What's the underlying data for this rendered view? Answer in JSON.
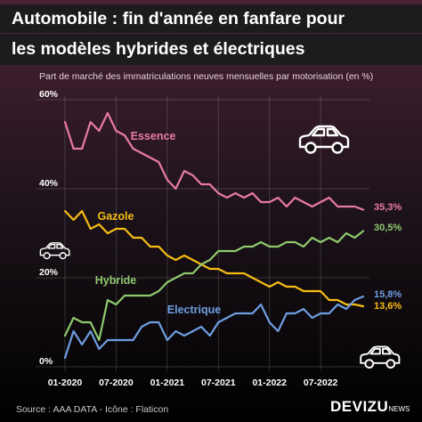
{
  "title_line1": "Automobile : fin d'année en fanfare pour",
  "title_line2": "les modèles hybrides et électriques",
  "subtitle": "Part de marché des immatriculations neuves mensuelles par motorisation (en %)",
  "source": "Source : AAA DATA - Icône : Flaticon",
  "brand": {
    "name": "DEVIZU",
    "suffix": "NEWS"
  },
  "icons": [
    "car-icon",
    "car-icon",
    "car-icon"
  ],
  "colors": {
    "essence": "#e87aa8",
    "gazole": "#f5bd14",
    "hybride": "#8fc96e",
    "electrique": "#6e9ee0",
    "axis_text": "#ffffff"
  },
  "chart_data": {
    "type": "line",
    "title": "Automobile : fin d'année en fanfare pour les modèles hybrides et électriques",
    "subtitle": "Part de marché des immatriculations neuves mensuelles par motorisation (en %)",
    "xlabel": "",
    "ylabel": "",
    "x": [
      "01-2020",
      "02-2020",
      "03-2020",
      "04-2020",
      "05-2020",
      "06-2020",
      "07-2020",
      "08-2020",
      "09-2020",
      "10-2020",
      "11-2020",
      "12-2020",
      "01-2021",
      "02-2021",
      "03-2021",
      "04-2021",
      "05-2021",
      "06-2021",
      "07-2021",
      "08-2021",
      "09-2021",
      "10-2021",
      "11-2021",
      "12-2021",
      "01-2022",
      "02-2022",
      "03-2022",
      "04-2022",
      "05-2022",
      "06-2022",
      "07-2022",
      "08-2022",
      "09-2022",
      "10-2022",
      "11-2022",
      "12-2022"
    ],
    "x_ticks": [
      "01-2020",
      "07-2020",
      "01-2021",
      "07-2021",
      "01-2022",
      "07-2022"
    ],
    "y_ticks": [
      "0%",
      "20%",
      "40%",
      "60%"
    ],
    "ylim": [
      0,
      60
    ],
    "grid": true,
    "legend": "inline labels",
    "series": [
      {
        "name": "Essence",
        "color": "#e87aa8",
        "end_label": "35,3%",
        "values": [
          55,
          49,
          49,
          55,
          53,
          57,
          53,
          52,
          49,
          48,
          47,
          46,
          42,
          40,
          44,
          43,
          41,
          41,
          39,
          38,
          39,
          38,
          39,
          37,
          37,
          38,
          36,
          38,
          37,
          36,
          37,
          38,
          36,
          36,
          36,
          35.3
        ]
      },
      {
        "name": "Gazole",
        "color": "#f5bd14",
        "end_label": "13,6%",
        "values": [
          35,
          33,
          35,
          31,
          32,
          30,
          31,
          31,
          29,
          29,
          27,
          27,
          25,
          24,
          25,
          24,
          23,
          22,
          22,
          21,
          21,
          21,
          20,
          19,
          18,
          19,
          18,
          18,
          17,
          17,
          17,
          15,
          15,
          14,
          14,
          13.6
        ]
      },
      {
        "name": "Hybride",
        "color": "#8fc96e",
        "end_label": "30,5%",
        "values": [
          7,
          11,
          10,
          10,
          6,
          15,
          14,
          16,
          16,
          16,
          16,
          17,
          19,
          20,
          21,
          21,
          23,
          24,
          26,
          26,
          26,
          27,
          27,
          28,
          27,
          27,
          28,
          28,
          27,
          29,
          28,
          29,
          28,
          30,
          29,
          30.5
        ]
      },
      {
        "name": "Electrique",
        "color": "#6e9ee0",
        "end_label": "15,8%",
        "values": [
          2,
          8,
          5,
          8,
          4,
          6,
          6,
          6,
          6,
          9,
          10,
          10,
          6,
          8,
          7,
          8,
          9,
          7,
          10,
          11,
          12,
          12,
          12,
          14,
          10,
          8,
          12,
          12,
          13,
          11,
          12,
          12,
          14,
          13,
          15,
          15.8
        ]
      }
    ]
  }
}
